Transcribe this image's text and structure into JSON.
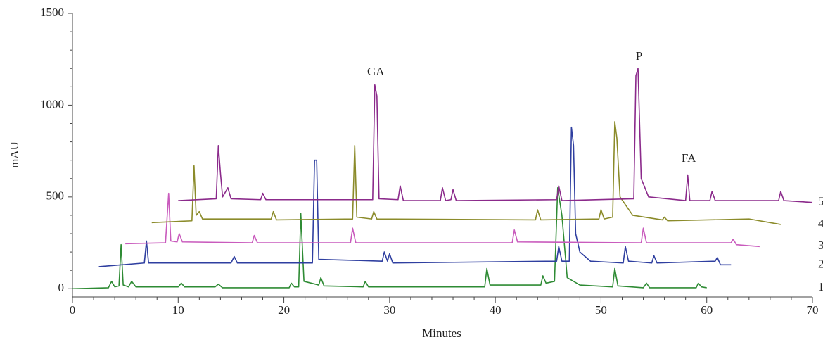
{
  "chart_data": {
    "type": "line",
    "xlabel": "Minutes",
    "ylabel": "mAU",
    "xlim": [
      0,
      70
    ],
    "xticks": [
      0,
      10,
      20,
      30,
      40,
      50,
      60,
      70
    ],
    "ylim": [
      -45,
      1500
    ],
    "yticks": [
      0,
      500,
      1000,
      1500
    ],
    "annotations": [
      {
        "text": "GA",
        "x": 28.7,
        "y": 1178
      },
      {
        "text": "P",
        "x": 53.6,
        "y": 1262
      },
      {
        "text": "FA",
        "x": 58.3,
        "y": 706
      }
    ],
    "series": [
      {
        "name": "1",
        "color": "#2e8b34",
        "x": [
          0,
          3.4,
          3.7,
          4.0,
          4.4,
          4.6,
          4.8,
          5.3,
          5.6,
          6,
          10,
          10.3,
          10.6,
          13.5,
          13.8,
          14.2,
          20.5,
          20.7,
          21,
          21.4,
          21.6,
          21.9,
          23.3,
          23.5,
          23.8,
          27.5,
          27.7,
          28,
          39,
          39.2,
          39.5,
          44.3,
          44.5,
          44.8,
          45.6,
          45.9,
          46.3,
          46.8,
          48,
          51.1,
          51.3,
          51.6,
          54,
          54.3,
          54.6,
          59,
          59.2,
          59.5,
          60
        ],
        "values": [
          0,
          5,
          40,
          10,
          15,
          240,
          20,
          10,
          40,
          10,
          10,
          30,
          10,
          10,
          25,
          5,
          5,
          30,
          10,
          10,
          410,
          40,
          20,
          60,
          15,
          10,
          40,
          10,
          10,
          110,
          20,
          20,
          70,
          30,
          40,
          550,
          400,
          60,
          20,
          10,
          110,
          15,
          5,
          30,
          5,
          5,
          30,
          10,
          5
        ]
      },
      {
        "name": "2",
        "color": "#2f3fa0",
        "x": [
          2.5,
          6.8,
          7,
          7.2,
          15,
          15.3,
          15.6,
          22.7,
          22.9,
          23.1,
          23.3,
          29.3,
          29.5,
          29.8,
          30,
          30.3,
          45.8,
          46,
          46.3,
          47,
          47.2,
          47.4,
          47.6,
          48,
          49,
          52.1,
          52.3,
          52.6,
          54.8,
          55,
          55.3,
          60.8,
          61,
          61.3,
          62.3
        ],
        "values": [
          120,
          140,
          260,
          140,
          140,
          175,
          140,
          140,
          700,
          700,
          160,
          150,
          200,
          150,
          190,
          140,
          150,
          230,
          150,
          150,
          880,
          780,
          300,
          200,
          150,
          140,
          230,
          150,
          140,
          180,
          140,
          150,
          170,
          130,
          130
        ]
      },
      {
        "name": "3",
        "color": "#c95bbd",
        "x": [
          5,
          8.8,
          9.1,
          9.3,
          9.9,
          10.1,
          10.4,
          17,
          17.2,
          17.5,
          26.3,
          26.5,
          26.8,
          41.6,
          41.8,
          42.1,
          53.8,
          54,
          54.3,
          62.3,
          62.5,
          62.8,
          65
        ],
        "values": [
          245,
          250,
          520,
          260,
          255,
          300,
          255,
          250,
          290,
          250,
          250,
          330,
          250,
          250,
          320,
          255,
          250,
          330,
          250,
          250,
          270,
          240,
          230
        ]
      },
      {
        "name": "4",
        "color": "#8b8b2a",
        "x": [
          7.5,
          11.3,
          11.5,
          11.7,
          12,
          12.3,
          18.8,
          19,
          19.3,
          26.5,
          26.7,
          26.9,
          28.3,
          28.5,
          28.8,
          43.8,
          44,
          44.3,
          49.8,
          50,
          50.3,
          51.1,
          51.3,
          51.5,
          51.8,
          53,
          55.8,
          56,
          56.3,
          64,
          67
        ],
        "values": [
          360,
          370,
          670,
          400,
          420,
          380,
          380,
          420,
          375,
          380,
          780,
          390,
          380,
          420,
          380,
          375,
          430,
          375,
          380,
          430,
          380,
          390,
          910,
          820,
          500,
          400,
          375,
          390,
          370,
          380,
          350
        ]
      },
      {
        "name": "5",
        "color": "#8b2a8b",
        "x": [
          10,
          13.6,
          13.8,
          14,
          14.2,
          14.7,
          15,
          17.8,
          18,
          18.3,
          28.4,
          28.6,
          28.8,
          29,
          30.8,
          31,
          31.3,
          34.8,
          35,
          35.3,
          35.8,
          36,
          36.3,
          45.8,
          46,
          46.3,
          53.1,
          53.3,
          53.5,
          53.8,
          54.5,
          58,
          58.2,
          58.4,
          60.3,
          60.5,
          60.8,
          66.8,
          67,
          67.3,
          70
        ],
        "values": [
          480,
          490,
          780,
          630,
          500,
          550,
          490,
          485,
          520,
          485,
          485,
          1110,
          1050,
          490,
          485,
          560,
          480,
          480,
          550,
          480,
          485,
          540,
          480,
          485,
          560,
          480,
          490,
          1160,
          1200,
          600,
          500,
          480,
          620,
          480,
          480,
          530,
          480,
          480,
          530,
          480,
          470
        ]
      }
    ]
  }
}
